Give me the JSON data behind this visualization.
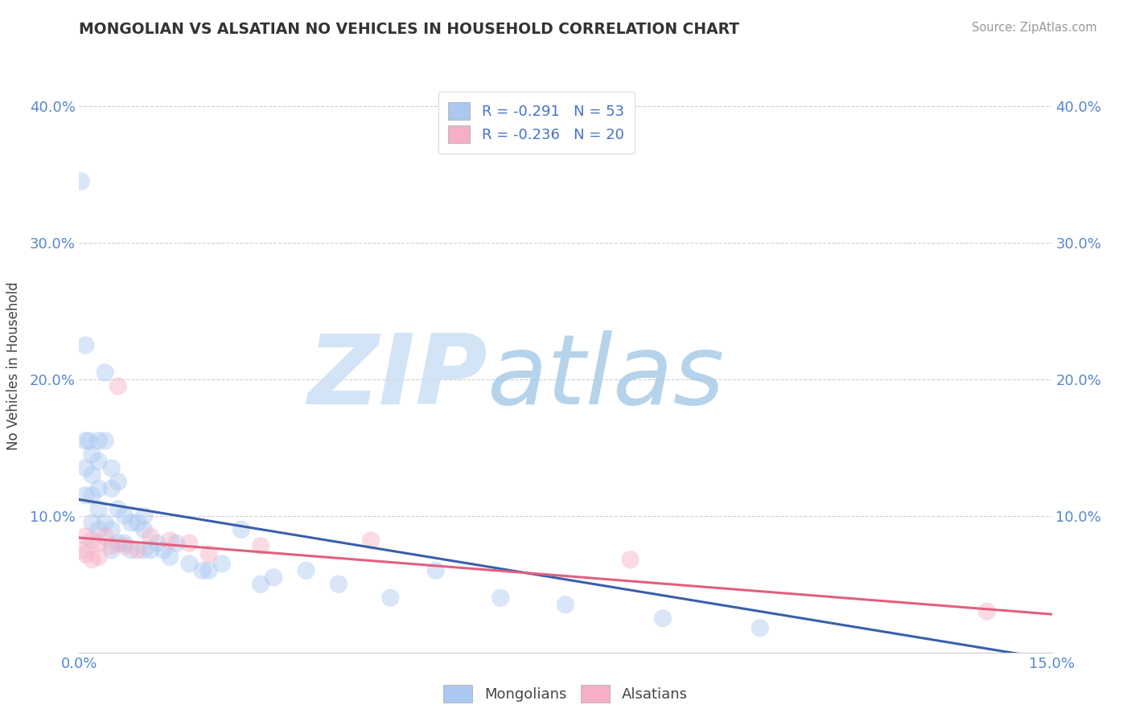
{
  "title": "MONGOLIAN VS ALSATIAN NO VEHICLES IN HOUSEHOLD CORRELATION CHART",
  "source": "Source: ZipAtlas.com",
  "ylabel": "No Vehicles in Household",
  "xlim": [
    0.0,
    0.15
  ],
  "ylim": [
    0.0,
    0.42
  ],
  "mongolian_color": "#aac8f0",
  "alsatian_color": "#f5b0c5",
  "mongolian_line_color": "#3a5faa",
  "alsatian_line_color": "#e06080",
  "mongolian_r": -0.291,
  "mongolian_n": 53,
  "alsatian_r": -0.236,
  "alsatian_n": 20,
  "watermark_zip": "ZIP",
  "watermark_atlas": "atlas",
  "watermark_color_zip": "#c8dff5",
  "watermark_color_atlas": "#a0c8e8",
  "legend_label_mongolian": "Mongolians",
  "legend_label_alsatian": "Alsatians",
  "mongolian_x": [
    0.0003,
    0.001,
    0.001,
    0.001,
    0.001,
    0.0015,
    0.002,
    0.002,
    0.002,
    0.002,
    0.003,
    0.003,
    0.003,
    0.003,
    0.003,
    0.004,
    0.004,
    0.004,
    0.005,
    0.005,
    0.005,
    0.005,
    0.006,
    0.006,
    0.006,
    0.007,
    0.007,
    0.008,
    0.008,
    0.009,
    0.01,
    0.01,
    0.01,
    0.011,
    0.012,
    0.013,
    0.014,
    0.015,
    0.017,
    0.019,
    0.02,
    0.022,
    0.025,
    0.028,
    0.03,
    0.035,
    0.04,
    0.048,
    0.055,
    0.065,
    0.075,
    0.09,
    0.105
  ],
  "mongolian_y": [
    0.345,
    0.225,
    0.155,
    0.135,
    0.115,
    0.155,
    0.145,
    0.13,
    0.115,
    0.095,
    0.155,
    0.14,
    0.12,
    0.105,
    0.09,
    0.205,
    0.155,
    0.095,
    0.135,
    0.12,
    0.09,
    0.075,
    0.125,
    0.105,
    0.08,
    0.1,
    0.08,
    0.095,
    0.075,
    0.095,
    0.1,
    0.09,
    0.075,
    0.075,
    0.08,
    0.075,
    0.07,
    0.08,
    0.065,
    0.06,
    0.06,
    0.065,
    0.09,
    0.05,
    0.055,
    0.06,
    0.05,
    0.04,
    0.06,
    0.04,
    0.035,
    0.025,
    0.018
  ],
  "alsatian_x": [
    0.0005,
    0.001,
    0.001,
    0.002,
    0.002,
    0.003,
    0.003,
    0.004,
    0.005,
    0.006,
    0.007,
    0.009,
    0.011,
    0.014,
    0.017,
    0.02,
    0.028,
    0.045,
    0.085,
    0.14
  ],
  "alsatian_y": [
    0.075,
    0.085,
    0.072,
    0.082,
    0.068,
    0.08,
    0.07,
    0.085,
    0.078,
    0.195,
    0.078,
    0.075,
    0.085,
    0.082,
    0.08,
    0.072,
    0.078,
    0.082,
    0.068,
    0.03
  ],
  "blue_line_x": [
    0.0,
    0.15
  ],
  "blue_line_y": [
    0.112,
    -0.005
  ],
  "pink_line_x": [
    0.0,
    0.15
  ],
  "pink_line_y": [
    0.084,
    0.028
  ]
}
